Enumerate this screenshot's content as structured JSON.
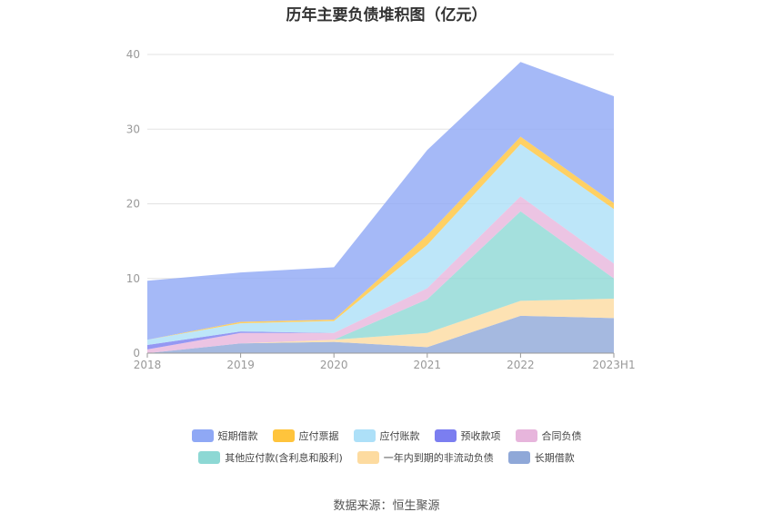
{
  "title": "历年主要负债堆积图（亿元）",
  "source": "数据来源：恒生聚源",
  "chart_data": {
    "type": "area",
    "stacked": true,
    "categories": [
      "2018",
      "2019",
      "2020",
      "2021",
      "2022",
      "2023H1"
    ],
    "ylim": [
      0,
      40
    ],
    "yticks": [
      0,
      10,
      20,
      30,
      40
    ],
    "grid": true,
    "legend_position": "bottom",
    "series": [
      {
        "name": "长期借款",
        "color": "#8fa8d8",
        "values": [
          0.0,
          1.3,
          1.5,
          0.8,
          5.0,
          4.7
        ]
      },
      {
        "name": "一年内到期的非流动负债",
        "color": "#fddba0",
        "values": [
          0.0,
          0.0,
          0.3,
          1.9,
          2.0,
          2.6
        ]
      },
      {
        "name": "其他应付款(含利息和股利)",
        "color": "#8dd8d4",
        "values": [
          0.0,
          0.0,
          0.0,
          4.5,
          12.0,
          2.7
        ]
      },
      {
        "name": "合同负债",
        "color": "#e7b5dc",
        "values": [
          0.5,
          1.4,
          0.9,
          1.5,
          2.0,
          2.0
        ]
      },
      {
        "name": "预收款项",
        "color": "#7b7ef0",
        "values": [
          0.6,
          0.2,
          0.0,
          0.0,
          0.0,
          0.0
        ]
      },
      {
        "name": "应付账款",
        "color": "#ade0f8",
        "values": [
          0.7,
          1.1,
          1.6,
          5.8,
          7.0,
          7.3
        ]
      },
      {
        "name": "应付票据",
        "color": "#ffc43c",
        "values": [
          0.0,
          0.2,
          0.2,
          1.3,
          1.0,
          0.8
        ]
      },
      {
        "name": "短期借款",
        "color": "#8fa8f5",
        "values": [
          7.9,
          6.6,
          7.0,
          11.4,
          10.0,
          14.3
        ]
      }
    ]
  }
}
